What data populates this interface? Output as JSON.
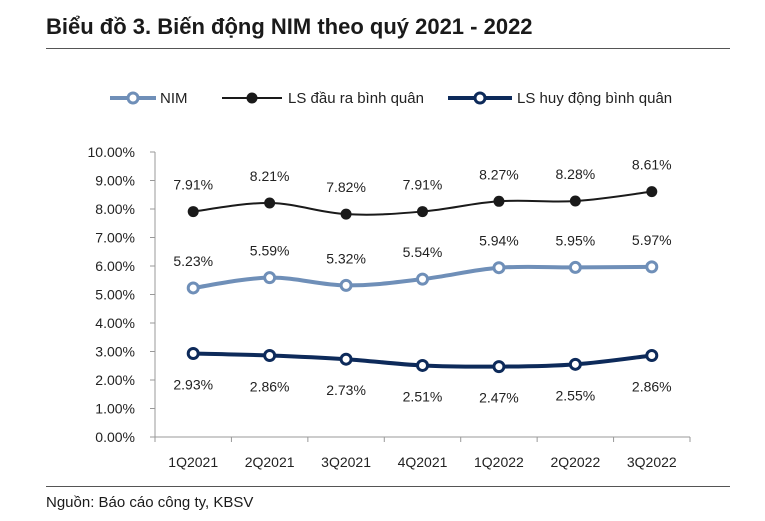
{
  "title": "Biểu đồ 3. Biến động NIM theo quý 2021 -  2022",
  "source": "Nguồn: Báo cáo công ty, KBSV",
  "chart_data": {
    "type": "line",
    "categories": [
      "1Q2021",
      "2Q2021",
      "3Q2021",
      "4Q2021",
      "1Q2022",
      "2Q2022",
      "3Q2022"
    ],
    "y_ticks": [
      "0.00%",
      "1.00%",
      "2.00%",
      "3.00%",
      "4.00%",
      "5.00%",
      "6.00%",
      "7.00%",
      "8.00%",
      "9.00%",
      "10.00%"
    ],
    "ylim": [
      0,
      10
    ],
    "grid": false,
    "legend_position": "top",
    "series": [
      {
        "name": "NIM",
        "values": [
          5.23,
          5.59,
          5.32,
          5.54,
          5.94,
          5.95,
          5.97
        ],
        "labels": [
          "5.23%",
          "5.59%",
          "5.32%",
          "5.54%",
          "5.94%",
          "5.95%",
          "5.97%"
        ],
        "color": "#6f8fb8",
        "marker": "hollow-circle"
      },
      {
        "name": "LS đầu ra bình quân",
        "values": [
          7.91,
          8.21,
          7.82,
          7.91,
          8.27,
          8.28,
          8.61
        ],
        "labels": [
          "7.91%",
          "8.21%",
          "7.82%",
          "7.91%",
          "8.27%",
          "8.28%",
          "8.61%"
        ],
        "color": "#1a1a1a",
        "marker": "filled-circle"
      },
      {
        "name": "LS huy động bình quân",
        "values": [
          2.93,
          2.86,
          2.73,
          2.51,
          2.47,
          2.55,
          2.86
        ],
        "labels": [
          "2.93%",
          "2.86%",
          "2.73%",
          "2.51%",
          "2.47%",
          "2.55%",
          "2.86%"
        ],
        "color": "#0d2a5a",
        "marker": "hollow-circle"
      }
    ]
  }
}
